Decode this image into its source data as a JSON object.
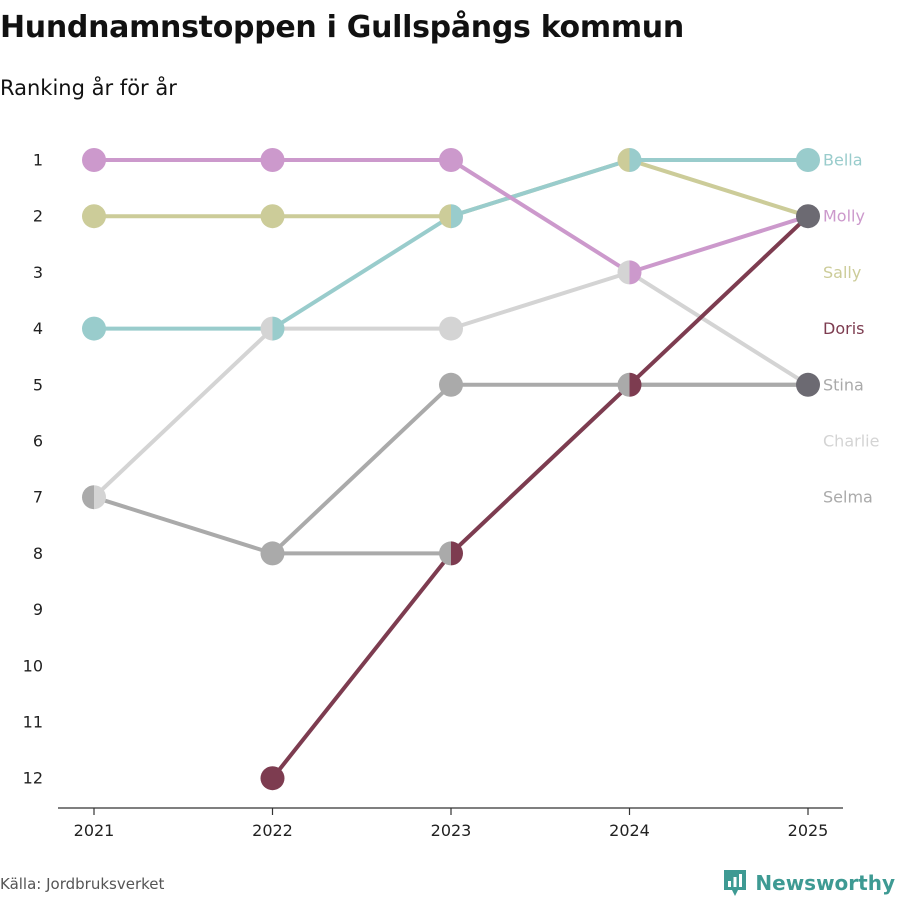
{
  "title": "Hundnamnstoppen i Gullspångs kommun",
  "subtitle": "Ranking år för år",
  "source": "Källa: Jordbruksverket",
  "brand": "Newsworthy",
  "brand_color": "#3e9a93",
  "chart_data": {
    "type": "line",
    "subtype": "bump",
    "x": [
      "2021",
      "2022",
      "2023",
      "2024",
      "2025"
    ],
    "y_ticks": [
      1,
      2,
      3,
      4,
      5,
      6,
      7,
      8,
      9,
      10,
      11,
      12
    ],
    "ylim": [
      1,
      12
    ],
    "y_inverted": true,
    "legend": "right-end labels",
    "series": [
      {
        "name": "Selma",
        "color": "#aaaaaa",
        "values": [
          7,
          8,
          5,
          5,
          5
        ]
      },
      {
        "name": "Charlie",
        "color": "#d4d4d4",
        "values": [
          7,
          4,
          4,
          3,
          5
        ]
      },
      {
        "name": "Stina",
        "color": "#aaaaaa",
        "values": [
          null,
          8,
          8,
          5,
          5
        ]
      },
      {
        "name": "Sally",
        "color": "#cccc99",
        "values": [
          2,
          2,
          2,
          1,
          2
        ]
      },
      {
        "name": "Bella",
        "color": "#99cccc",
        "values": [
          4,
          4,
          2,
          1,
          1
        ]
      },
      {
        "name": "Molly",
        "color": "#cc99cc",
        "values": [
          1,
          1,
          1,
          3,
          2
        ]
      },
      {
        "name": "Doris",
        "color": "#7d3c50",
        "values": [
          null,
          12,
          8,
          5,
          2
        ]
      }
    ],
    "end_labels": [
      {
        "name": "Bella",
        "rank": 1,
        "color": "#99cccc"
      },
      {
        "name": "Molly",
        "rank": 2,
        "color": "#cc99cc"
      },
      {
        "name": "Sally",
        "rank": 3,
        "color": "#cccc99"
      },
      {
        "name": "Doris",
        "rank": 4,
        "color": "#7d3c50"
      },
      {
        "name": "Stina",
        "rank": 5,
        "color": "#aaaaaa"
      },
      {
        "name": "Charlie",
        "rank": 6,
        "color": "#d4d4d4"
      },
      {
        "name": "Selma",
        "rank": 7,
        "color": "#aaaaaa"
      }
    ],
    "end_marker_colors": {
      "2": "#6c6a72",
      "5": "#6c6a72"
    }
  }
}
